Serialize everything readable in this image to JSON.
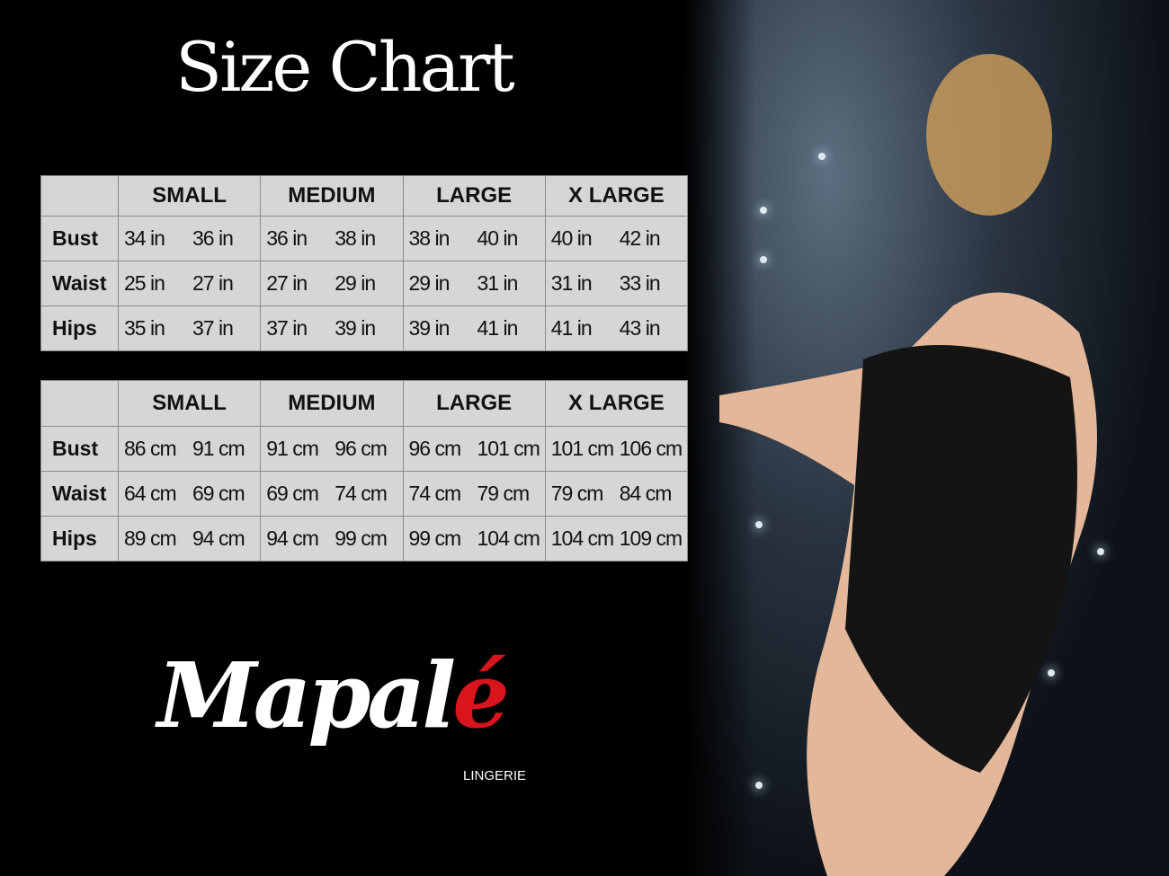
{
  "title": "Size Chart",
  "sizes": [
    "SMALL",
    "MEDIUM",
    "LARGE",
    "X LARGE"
  ],
  "inches": [
    {
      "label": "Bust",
      "values": [
        "34 in",
        "36 in",
        "36 in",
        "38 in",
        "38 in",
        "40 in",
        "40 in",
        "42 in"
      ]
    },
    {
      "label": "Waist",
      "values": [
        "25 in",
        "27 in",
        "27 in",
        "29 in",
        "29 in",
        "31 in",
        "31 in",
        "33 in"
      ]
    },
    {
      "label": "Hips",
      "values": [
        "35 in",
        "37 in",
        "37 in",
        "39 in",
        "39 in",
        "41 in",
        "41 in",
        "43 in"
      ]
    }
  ],
  "cm": [
    {
      "label": "Bust",
      "values": [
        "86 cm",
        "91 cm",
        "91 cm",
        "96 cm",
        "96 cm",
        "101 cm",
        "101 cm",
        "106 cm"
      ]
    },
    {
      "label": "Waist",
      "values": [
        "64 cm",
        "69 cm",
        "69 cm",
        "74 cm",
        "74 cm",
        "79 cm",
        "79 cm",
        "84 cm"
      ]
    },
    {
      "label": "Hips",
      "values": [
        "89 cm",
        "94 cm",
        "94 cm",
        "99 cm",
        "99 cm",
        "104 cm",
        "104 cm",
        "109 cm"
      ]
    }
  ],
  "logo": {
    "text_main": "Mapal",
    "text_accent": "é",
    "subtitle": "LINGERIE",
    "accent_color": "#d8141c"
  }
}
